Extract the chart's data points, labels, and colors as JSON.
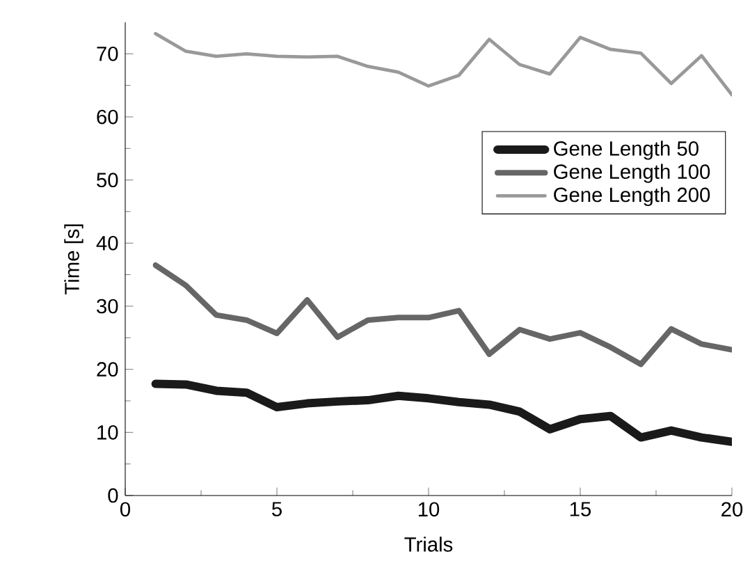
{
  "chart_data": {
    "type": "line",
    "xlabel": "Trials",
    "ylabel": "Time [s]",
    "x": [
      1,
      2,
      3,
      4,
      5,
      6,
      7,
      8,
      9,
      10,
      11,
      12,
      13,
      14,
      15,
      16,
      17,
      18,
      19,
      20
    ],
    "xlim": [
      0,
      20
    ],
    "xticks": [
      0,
      5,
      10,
      15,
      20
    ],
    "ylim": [
      0,
      75
    ],
    "yticks": [
      0,
      10,
      20,
      30,
      40,
      50,
      60,
      70
    ],
    "legend": "right",
    "grid": false,
    "marker": "none",
    "line_style": "solid",
    "series": [
      {
        "name": "Gene Length 50",
        "color": "#1a1a1a",
        "values": [
          17.7,
          17.6,
          16.6,
          16.3,
          14.0,
          14.6,
          14.9,
          15.1,
          15.8,
          15.4,
          14.8,
          14.4,
          13.3,
          10.5,
          12.1,
          12.6,
          9.2,
          10.3,
          9.2,
          8.5
        ]
      },
      {
        "name": "Gene Length 100",
        "color": "#666666",
        "values": [
          36.5,
          33.3,
          28.6,
          27.8,
          25.7,
          31.0,
          25.1,
          27.8,
          28.2,
          28.2,
          29.3,
          22.4,
          26.3,
          24.8,
          25.8,
          23.5,
          20.8,
          26.4,
          24.0,
          23.1
        ]
      },
      {
        "name": "Gene Length 200",
        "color": "#999999",
        "values": [
          73.2,
          70.4,
          69.6,
          70.0,
          69.6,
          69.5,
          69.6,
          68.0,
          67.1,
          64.9,
          66.6,
          72.3,
          68.3,
          66.8,
          72.6,
          70.7,
          70.1,
          65.3,
          69.7,
          63.5
        ]
      }
    ]
  }
}
